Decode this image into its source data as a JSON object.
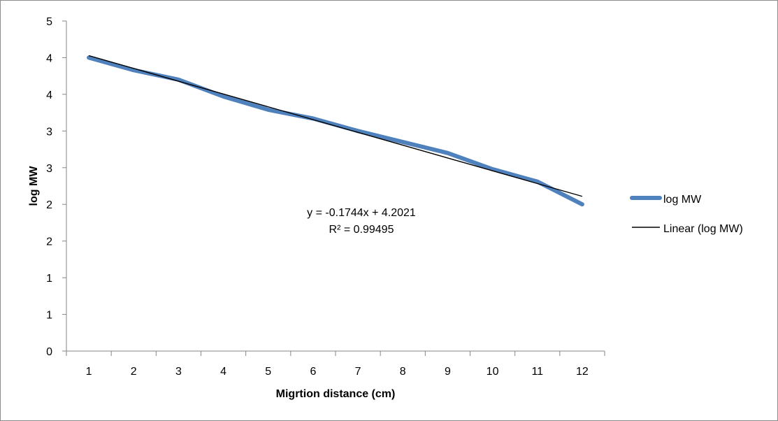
{
  "chart_data": {
    "type": "line",
    "xlabel": "Migrtion distance (cm)",
    "ylabel": "log MW",
    "categories": [
      "1",
      "2",
      "3",
      "4",
      "5",
      "6",
      "7",
      "8",
      "9",
      "10",
      "11",
      "12"
    ],
    "y_tick_labels": [
      "0",
      "1",
      "1",
      "2",
      "2",
      "3",
      "3",
      "4",
      "4",
      "5"
    ],
    "ylim": [
      0,
      4.5
    ],
    "grid": false,
    "legend_position": "right",
    "series": [
      {
        "name": "log MW",
        "color": "#4f81bd",
        "values": [
          4.0,
          3.83,
          3.7,
          3.47,
          3.29,
          3.17,
          3.0,
          2.85,
          2.7,
          2.48,
          2.31,
          2.0
        ]
      }
    ],
    "trendline": {
      "name": "Linear (log MW)",
      "color": "#000000",
      "slope": -0.1744,
      "intercept": 4.2021,
      "equation": "y = -0.1744x + 4.2021",
      "r_squared": "R² = 0.99495"
    }
  }
}
